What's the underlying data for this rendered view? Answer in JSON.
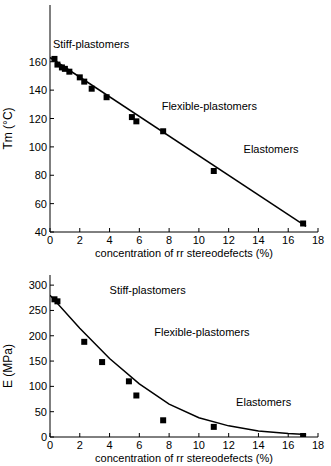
{
  "chart_data": [
    {
      "type": "scatter",
      "xlabel": "concentration of rr stereodefects (%)",
      "ylabel": "Tm (°C)",
      "xlim": [
        0,
        18
      ],
      "xticks": [
        0,
        2,
        4,
        6,
        8,
        10,
        12,
        14,
        16,
        18
      ],
      "ylim": [
        40,
        200
      ],
      "yticks": [
        40,
        60,
        80,
        100,
        120,
        140,
        160
      ],
      "series": [
        {
          "type": "scatter",
          "marker": "square",
          "color": "#000000",
          "x": [
            0.3,
            0.5,
            0.8,
            1.0,
            1.3,
            2.0,
            2.3,
            2.8,
            3.8,
            5.5,
            5.8,
            7.6,
            11.0,
            17.0
          ],
          "values": [
            162,
            158,
            156,
            155,
            153,
            149,
            146,
            141,
            135,
            121,
            118,
            111,
            83,
            46
          ]
        },
        {
          "type": "line",
          "line_style": "solid",
          "color": "#000000",
          "x": [
            0,
            17.2
          ],
          "values": [
            163,
            44
          ]
        }
      ],
      "annotations": [
        {
          "text": "Stiff-plastomers",
          "x": 0.2,
          "y": 170
        },
        {
          "text": "Flexible-plastomers",
          "x": 7.5,
          "y": 126
        },
        {
          "text": "Elastomers",
          "x": 13.0,
          "y": 96
        }
      ]
    },
    {
      "type": "scatter",
      "xlabel": "concentration of rr stereodefects (%)",
      "ylabel": "E (MPa)",
      "xlim": [
        0,
        18
      ],
      "xticks": [
        0,
        2,
        4,
        6,
        8,
        10,
        12,
        14,
        16,
        18
      ],
      "ylim": [
        0,
        320
      ],
      "yticks": [
        0,
        50,
        100,
        150,
        200,
        250,
        300
      ],
      "series": [
        {
          "type": "scatter",
          "marker": "square",
          "color": "#000000",
          "x": [
            0.3,
            0.5,
            2.3,
            3.5,
            5.3,
            5.8,
            7.6,
            11.0,
            17.0
          ],
          "values": [
            272,
            268,
            188,
            148,
            110,
            82,
            33,
            20,
            2
          ]
        },
        {
          "type": "line",
          "line_style": "solid",
          "color": "#000000",
          "x": [
            0,
            2,
            4,
            6,
            8,
            10,
            12,
            14,
            16,
            17.2
          ],
          "values": [
            280,
            215,
            155,
            105,
            65,
            38,
            22,
            12,
            7,
            5
          ]
        }
      ],
      "annotations": [
        {
          "text": "Stiff-plastomers",
          "x": 4.0,
          "y": 282
        },
        {
          "text": "Flexible-plastomers",
          "x": 7.0,
          "y": 200
        },
        {
          "text": "Elastomers",
          "x": 12.5,
          "y": 62
        }
      ]
    }
  ]
}
